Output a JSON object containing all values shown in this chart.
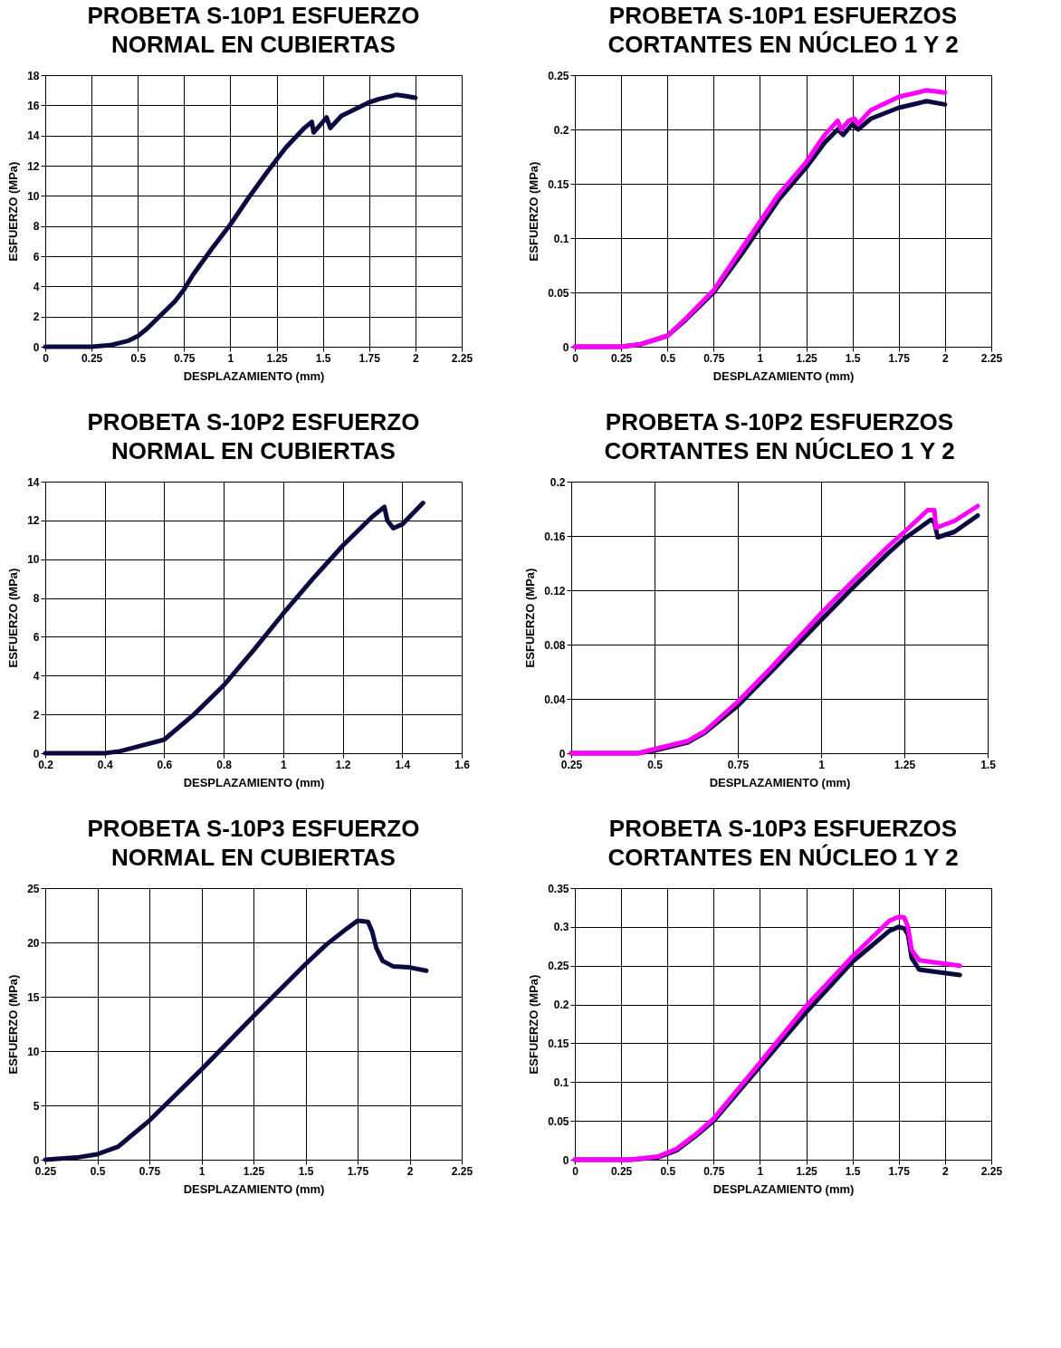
{
  "chart_data": [
    {
      "type": "line",
      "title": "PROBETA S-10P1 ESFUERZO\nNORMAL EN CUBIERTAS",
      "xlabel": "DESPLAZAMIENTO (mm)",
      "ylabel": "ESFUERZO (MPa)",
      "grid": true,
      "xlim": [
        0,
        2.25
      ],
      "xticks": [
        0,
        0.25,
        0.5,
        0.75,
        1,
        1.25,
        1.5,
        1.75,
        2,
        2.25
      ],
      "ylim": [
        0,
        18
      ],
      "yticks": [
        0,
        2,
        4,
        6,
        8,
        10,
        12,
        14,
        16,
        18
      ],
      "series": [
        {
          "color": "#0a0a40",
          "x": [
            0,
            0.25,
            0.35,
            0.45,
            0.5,
            0.55,
            0.6,
            0.7,
            0.75,
            0.8,
            0.9,
            1.0,
            1.1,
            1.2,
            1.25,
            1.3,
            1.4,
            1.44,
            1.45,
            1.5,
            1.52,
            1.54,
            1.6,
            1.7,
            1.75,
            1.8,
            1.9,
            1.95,
            2.0
          ],
          "values": [
            0,
            0,
            0.1,
            0.4,
            0.7,
            1.2,
            1.8,
            3,
            3.8,
            4.8,
            6.5,
            8.1,
            9.9,
            11.6,
            12.4,
            13.2,
            14.5,
            14.9,
            14.2,
            14.9,
            15.2,
            14.5,
            15.3,
            15.9,
            16.2,
            16.4,
            16.7,
            16.6,
            16.5
          ]
        }
      ]
    },
    {
      "type": "line",
      "title": "PROBETA S-10P1 ESFUERZOS\nCORTANTES EN NÚCLEO 1 Y 2",
      "xlabel": "DESPLAZAMIENTO (mm)",
      "ylabel": "ESFUERZO (MPa)",
      "grid": true,
      "xlim": [
        0,
        2.25
      ],
      "xticks": [
        0,
        0.25,
        0.5,
        0.75,
        1,
        1.25,
        1.5,
        1.75,
        2,
        2.25
      ],
      "ylim": [
        0,
        0.25
      ],
      "yticks": [
        0,
        0.05,
        0.1,
        0.15,
        0.2,
        0.25
      ],
      "series": [
        {
          "color": "#0a0a40",
          "x": [
            0,
            0.25,
            0.35,
            0.5,
            0.6,
            0.75,
            0.9,
            1.0,
            1.1,
            1.25,
            1.35,
            1.42,
            1.45,
            1.5,
            1.53,
            1.6,
            1.75,
            1.9,
            2.0
          ],
          "values": [
            0,
            0,
            0.002,
            0.01,
            0.025,
            0.05,
            0.085,
            0.11,
            0.135,
            0.165,
            0.188,
            0.2,
            0.195,
            0.205,
            0.2,
            0.21,
            0.22,
            0.226,
            0.223
          ]
        },
        {
          "color": "#ff00ff",
          "x": [
            0,
            0.25,
            0.35,
            0.5,
            0.6,
            0.75,
            0.9,
            1.0,
            1.1,
            1.25,
            1.35,
            1.42,
            1.44,
            1.48,
            1.51,
            1.53,
            1.6,
            1.75,
            1.9,
            2.0
          ],
          "values": [
            0,
            0,
            0.002,
            0.01,
            0.026,
            0.052,
            0.09,
            0.115,
            0.14,
            0.17,
            0.195,
            0.208,
            0.2,
            0.208,
            0.21,
            0.205,
            0.218,
            0.23,
            0.236,
            0.234
          ]
        }
      ]
    },
    {
      "type": "line",
      "title": "PROBETA S-10P2 ESFUERZO\nNORMAL EN CUBIERTAS",
      "xlabel": "DESPLAZAMIENTO (mm)",
      "ylabel": "ESFUERZO (MPa)",
      "grid": true,
      "xlim": [
        0.2,
        1.6
      ],
      "xticks": [
        0.2,
        0.4,
        0.6,
        0.8,
        1,
        1.2,
        1.4,
        1.6
      ],
      "ylim": [
        0,
        14
      ],
      "yticks": [
        0,
        2,
        4,
        6,
        8,
        10,
        12,
        14
      ],
      "series": [
        {
          "color": "#0a0a40",
          "x": [
            0.2,
            0.4,
            0.45,
            0.5,
            0.6,
            0.7,
            0.8,
            0.9,
            1.0,
            1.1,
            1.2,
            1.3,
            1.34,
            1.35,
            1.37,
            1.4,
            1.47
          ],
          "values": [
            0,
            0,
            0.1,
            0.3,
            0.7,
            2,
            3.5,
            5.3,
            7.2,
            9.0,
            10.7,
            12.2,
            12.7,
            12,
            11.6,
            11.8,
            12.9
          ]
        }
      ]
    },
    {
      "type": "line",
      "title": "PROBETA S-10P2 ESFUERZOS\nCORTANTES EN NÚCLEO 1 Y 2",
      "xlabel": "DESPLAZAMIENTO (mm)",
      "ylabel": "ESFUERZO (MPa)",
      "grid": true,
      "xlim": [
        0.25,
        1.5
      ],
      "xticks": [
        0.25,
        0.5,
        0.75,
        1,
        1.25,
        1.5
      ],
      "ylim": [
        0,
        0.2
      ],
      "yticks": [
        0,
        0.04,
        0.08,
        0.12,
        0.16,
        0.2
      ],
      "series": [
        {
          "color": "#0a0a40",
          "x": [
            0.25,
            0.45,
            0.5,
            0.6,
            0.65,
            0.75,
            0.85,
            1.0,
            1.1,
            1.2,
            1.25,
            1.33,
            1.34,
            1.35,
            1.4,
            1.47
          ],
          "values": [
            0,
            0,
            0.002,
            0.008,
            0.015,
            0.035,
            0.06,
            0.098,
            0.123,
            0.147,
            0.158,
            0.172,
            0.17,
            0.159,
            0.163,
            0.175
          ]
        },
        {
          "color": "#ff00ff",
          "x": [
            0.25,
            0.45,
            0.5,
            0.6,
            0.65,
            0.75,
            0.85,
            1.0,
            1.1,
            1.2,
            1.25,
            1.32,
            1.34,
            1.345,
            1.4,
            1.47
          ],
          "values": [
            0,
            0,
            0.003,
            0.009,
            0.016,
            0.038,
            0.063,
            0.103,
            0.128,
            0.152,
            0.163,
            0.179,
            0.179,
            0.166,
            0.171,
            0.182
          ]
        }
      ]
    },
    {
      "type": "line",
      "title": "PROBETA S-10P3 ESFUERZO\nNORMAL EN CUBIERTAS",
      "xlabel": "DESPLAZAMIENTO (mm)",
      "ylabel": "ESFUERZO (MPa)",
      "grid": true,
      "xlim": [
        0.25,
        2.25
      ],
      "xticks": [
        0.25,
        0.5,
        0.75,
        1,
        1.25,
        1.5,
        1.75,
        2,
        2.25
      ],
      "ylim": [
        0,
        25
      ],
      "yticks": [
        0,
        5,
        10,
        15,
        20,
        25
      ],
      "series": [
        {
          "color": "#0a0a40",
          "x": [
            0.25,
            0.4,
            0.5,
            0.6,
            0.65,
            0.75,
            1.0,
            1.25,
            1.5,
            1.6,
            1.7,
            1.75,
            1.8,
            1.82,
            1.84,
            1.87,
            1.92,
            2.0,
            2.08
          ],
          "values": [
            0,
            0.2,
            0.5,
            1.2,
            2,
            3.6,
            8.3,
            13.2,
            18,
            19.8,
            21.3,
            22,
            21.9,
            21,
            19.5,
            18.3,
            17.8,
            17.7,
            17.4
          ]
        }
      ]
    },
    {
      "type": "line",
      "title": "PROBETA S-10P3 ESFUERZOS\nCORTANTES EN NÚCLEO 1 Y 2",
      "xlabel": "DESPLAZAMIENTO (mm)",
      "ylabel": "ESFUERZO (MPa)",
      "grid": true,
      "xlim": [
        0,
        2.25
      ],
      "xticks": [
        0,
        0.25,
        0.5,
        0.75,
        1,
        1.25,
        1.5,
        1.75,
        2,
        2.25
      ],
      "ylim": [
        0,
        0.35
      ],
      "yticks": [
        0,
        0.05,
        0.1,
        0.15,
        0.2,
        0.25,
        0.3,
        0.35
      ],
      "series": [
        {
          "color": "#0a0a40",
          "x": [
            0,
            0.3,
            0.45,
            0.55,
            0.65,
            0.75,
            1.0,
            1.25,
            1.5,
            1.6,
            1.7,
            1.75,
            1.78,
            1.8,
            1.82,
            1.86,
            1.95,
            2.08
          ],
          "values": [
            0,
            0,
            0.003,
            0.012,
            0.03,
            0.05,
            0.12,
            0.19,
            0.255,
            0.275,
            0.295,
            0.3,
            0.298,
            0.29,
            0.26,
            0.245,
            0.242,
            0.238
          ]
        },
        {
          "color": "#ff00ff",
          "x": [
            0,
            0.3,
            0.45,
            0.55,
            0.65,
            0.75,
            1.0,
            1.25,
            1.5,
            1.6,
            1.7,
            1.75,
            1.78,
            1.8,
            1.82,
            1.86,
            1.95,
            2.08
          ],
          "values": [
            0,
            0,
            0.004,
            0.014,
            0.032,
            0.053,
            0.125,
            0.198,
            0.262,
            0.285,
            0.308,
            0.313,
            0.312,
            0.3,
            0.27,
            0.257,
            0.254,
            0.25
          ]
        }
      ]
    }
  ]
}
